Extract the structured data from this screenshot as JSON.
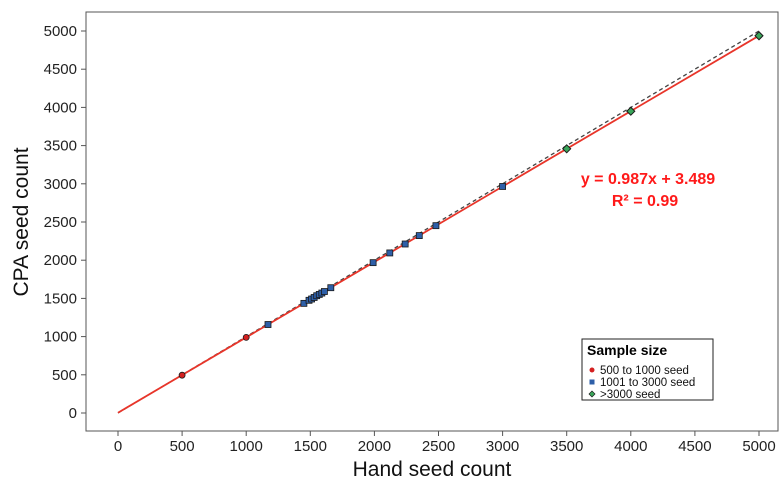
{
  "chart_data": {
    "type": "scatter",
    "xlabel": "Hand seed count",
    "ylabel": "CPA seed count",
    "xlim": [
      -250,
      5150
    ],
    "ylim": [
      -250,
      5150
    ],
    "xticks": [
      0,
      500,
      1000,
      1500,
      2000,
      2500,
      3000,
      3500,
      4000,
      4500,
      5000
    ],
    "yticks": [
      0,
      500,
      1000,
      1500,
      2000,
      2500,
      3000,
      3500,
      4000,
      4500,
      5000
    ],
    "grid": false,
    "legend": {
      "title": "Sample size",
      "position": "bottom-right"
    },
    "series": [
      {
        "name": "500 to 1000 seed",
        "color": "#d42020",
        "points": [
          [
            500,
            495
          ],
          [
            1000,
            990
          ]
        ]
      },
      {
        "name": "1001 to 3000 seed",
        "color": "#2e5fa8",
        "points": [
          [
            1170,
            1158
          ],
          [
            1450,
            1435
          ],
          [
            1490,
            1475
          ],
          [
            1510,
            1492
          ],
          [
            1530,
            1512
          ],
          [
            1550,
            1535
          ],
          [
            1570,
            1552
          ],
          [
            1590,
            1570
          ],
          [
            1610,
            1590
          ],
          [
            1660,
            1640
          ],
          [
            1990,
            1968
          ],
          [
            2120,
            2095
          ],
          [
            2240,
            2212
          ],
          [
            2350,
            2322
          ],
          [
            2480,
            2452
          ],
          [
            3000,
            2965
          ]
        ]
      },
      {
        "name": ">3000 seed",
        "color": "#3aa65a",
        "points": [
          [
            3500,
            3458
          ],
          [
            4000,
            3950
          ],
          [
            5000,
            4938
          ]
        ]
      }
    ],
    "fit_line": {
      "slope": 0.987,
      "intercept": 3.489,
      "color": "#e8352a"
    },
    "reference_line": {
      "slope": 1,
      "intercept": 0,
      "style": "dashed",
      "color": "#444444"
    },
    "annotations": {
      "equation": "y = 0.987x + 3.489",
      "r_squared": "R² = 0.99"
    }
  }
}
